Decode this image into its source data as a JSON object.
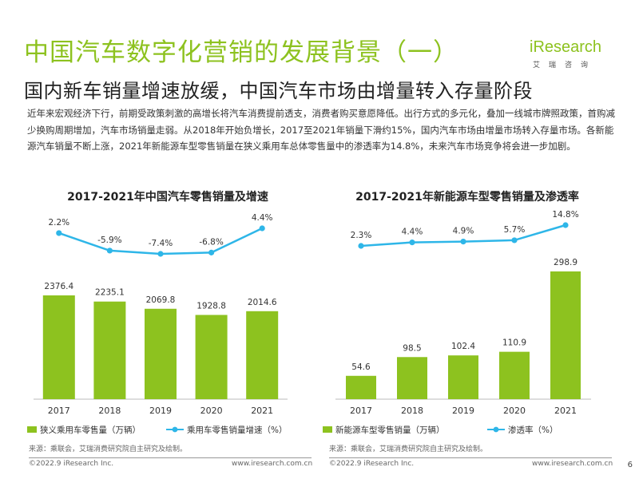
{
  "header": {
    "title": "中国汽车数字化营销的发展背景（一）",
    "subtitle": "国内新车销量增速放缓，中国汽车市场由增量转入存量阶段",
    "logo_text": "iResearch",
    "logo_sub": "艾瑞咨询"
  },
  "paragraph": "近年来宏观经济下行，前期受政策刺激的高增长将汽车消费提前透支，消费者购买意愿降低。出行方式的多元化，叠加一线城市牌照政策，首购减少换购周期增加，汽车市场销量走弱。从2018年开始负增长，2017至2021年销量下滑约15%，国内汽车市场由增量市场转入存量市场。各新能源汽车销量不断上涨，2021年新能源车型零售销量在狭义乘用车总体零售量中的渗透率为14.8%，未来汽车市场竞争将会进一步加剧。",
  "colors": {
    "title": "#8dc21f",
    "bar": "#8dc21f",
    "line": "#2eb6e8"
  },
  "chart_data": [
    {
      "type": "bar+line",
      "title": "2017-2021年中国汽车零售销量及增速",
      "categories": [
        "2017",
        "2018",
        "2019",
        "2020",
        "2021"
      ],
      "series": [
        {
          "name": "狭义乘用车零售量（万辆）",
          "type": "bar",
          "values": [
            2376.4,
            2235.1,
            2069.8,
            1928.8,
            2014.6
          ],
          "labels": [
            "2376.4",
            "2235.1",
            "2069.8",
            "1928.8",
            "2014.6"
          ]
        },
        {
          "name": "乘用车零售销量增速（%）",
          "type": "line",
          "values": [
            2.2,
            -5.9,
            -7.4,
            -6.8,
            4.4
          ],
          "labels": [
            "2.2%",
            "-5.9%",
            "-7.4%",
            "-6.8%",
            "4.4%"
          ]
        }
      ]
    },
    {
      "type": "bar+line",
      "title": "2017-2021年新能源车型零售销量及渗透率",
      "categories": [
        "2017",
        "2018",
        "2019",
        "2020",
        "2021"
      ],
      "series": [
        {
          "name": "新能源车型零售销量（万辆）",
          "type": "bar",
          "values": [
            54.6,
            98.5,
            102.4,
            110.9,
            298.9
          ],
          "labels": [
            "54.6",
            "98.5",
            "102.4",
            "110.9",
            "298.9"
          ]
        },
        {
          "name": "渗透率（%）",
          "type": "line",
          "values": [
            2.3,
            4.4,
            4.9,
            5.7,
            14.8
          ],
          "labels": [
            "2.3%",
            "4.4%",
            "4.9%",
            "5.7%",
            "14.8%"
          ]
        }
      ]
    }
  ],
  "footer": {
    "source": "来源：乘联会，艾瑞消费研究院自主研究及绘制。",
    "copyright": "©2022.9 iResearch Inc.",
    "website": "www.iresearch.com.cn",
    "page": "6"
  }
}
